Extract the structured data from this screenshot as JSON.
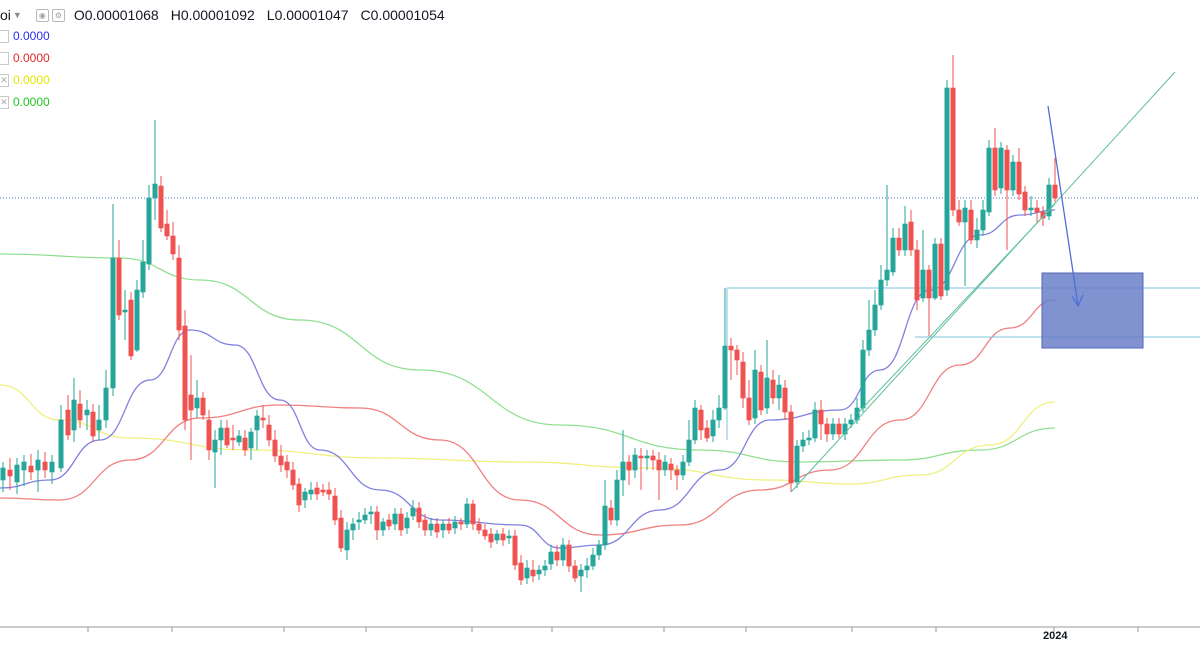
{
  "header": {
    "symbol_fragment": "oi",
    "open_key": "O",
    "open": "0.00001068",
    "high_key": "H",
    "high": "0.00001092",
    "low_key": "L",
    "low": "0.00001047",
    "close_key": "C",
    "close": "0.00001054"
  },
  "indicators": [
    {
      "value": "0.0000",
      "color": "#2b30e8"
    },
    {
      "value": "0.0000",
      "color": "#e02b2b"
    },
    {
      "value": "0.0000",
      "color": "#e6e600"
    },
    {
      "value": "0.0000",
      "color": "#22c322"
    }
  ],
  "time_axis": {
    "labels": [
      "2024"
    ]
  },
  "colors": {
    "up": "#26a69a",
    "down": "#ef5350",
    "wick": "#4a4a4a",
    "ma_blue": "#8080e0",
    "ma_red": "#f08080",
    "ma_yellow": "#f0f080",
    "ma_green": "#90e090",
    "trendline": "#5fbf9a",
    "price_line": "#4f6fd8",
    "box_fill": "#6a7fc7",
    "levels": "#7fc4e0"
  },
  "chart_data": {
    "type": "candlestick",
    "last": {
      "open": 1.068e-05,
      "high": 1.092e-05,
      "low": 1.047e-05,
      "close": 1.054e-05
    },
    "x_tick_labels": [
      "2024"
    ],
    "grid": false
  }
}
